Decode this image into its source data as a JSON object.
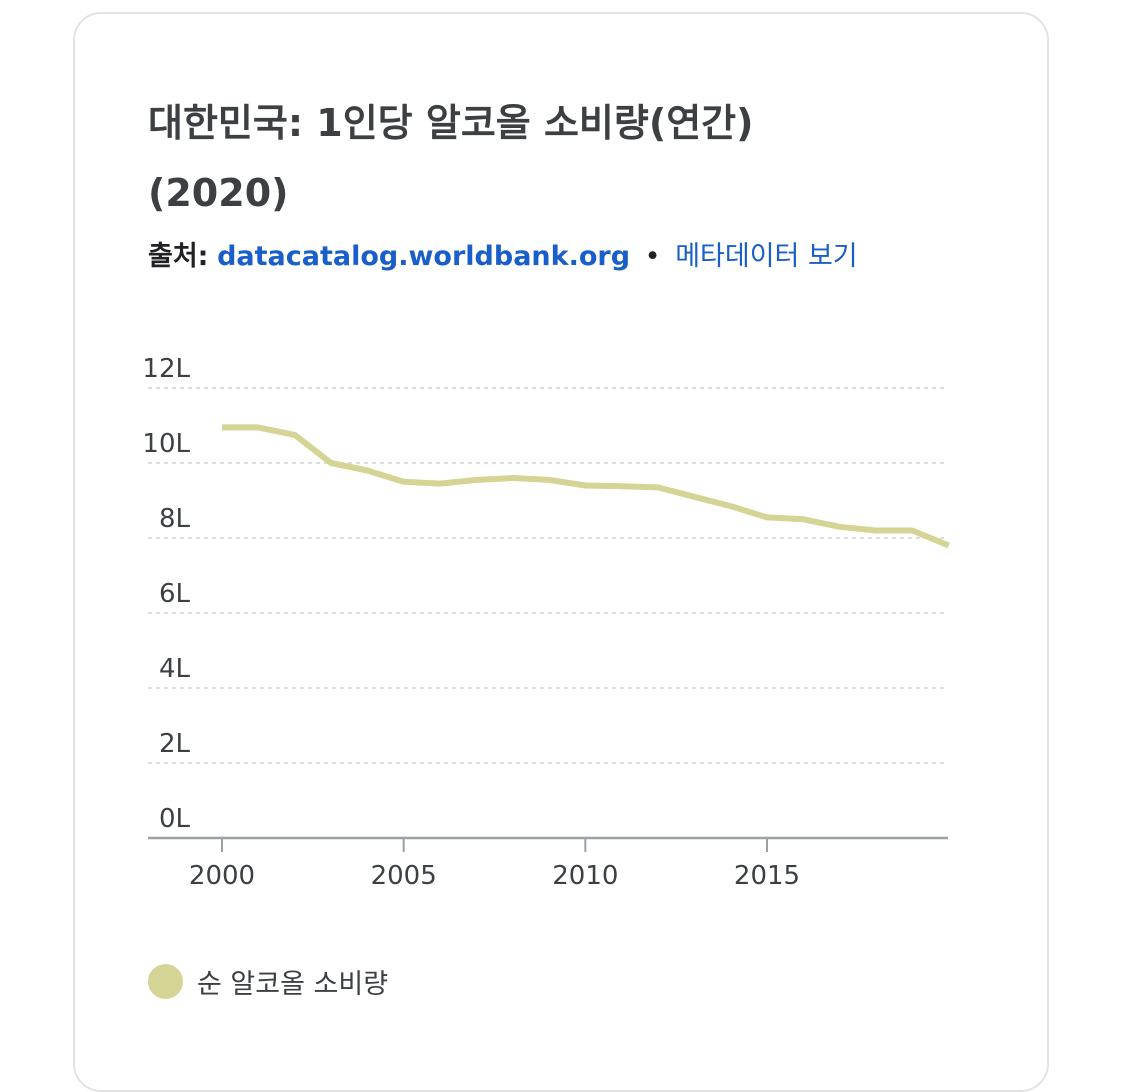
{
  "card": {
    "title": "대한민국: 1인당 알코올 소비량(연간) (2020)",
    "source_label": "출처:",
    "source_link": "datacatalog.worldbank.org",
    "separator": "•",
    "metadata_link": "메타데이터 보기"
  },
  "chart_data": {
    "type": "line",
    "title": "대한민국: 1인당 알코올 소비량(연간) (2020)",
    "xlabel": "",
    "ylabel": "",
    "x_ticks": [
      "2000",
      "2005",
      "2010",
      "2015"
    ],
    "y_ticks": [
      "0L",
      "2L",
      "4L",
      "6L",
      "8L",
      "10L",
      "12L"
    ],
    "ylim": [
      0,
      12
    ],
    "xlim": [
      1998,
      2020
    ],
    "grid": true,
    "legend_position": "bottom-left",
    "series": [
      {
        "name": "순 알코올 소비량",
        "color": "#d4d494",
        "x": [
          2000,
          2001,
          2002,
          2003,
          2004,
          2005,
          2006,
          2007,
          2008,
          2009,
          2010,
          2011,
          2012,
          2013,
          2014,
          2015,
          2016,
          2017,
          2018,
          2019,
          2020
        ],
        "y": [
          10.95,
          10.95,
          10.75,
          10.0,
          9.8,
          9.5,
          9.45,
          9.55,
          9.6,
          9.55,
          9.4,
          9.38,
          9.35,
          9.1,
          8.85,
          8.55,
          8.5,
          8.3,
          8.2,
          8.2,
          7.8
        ]
      }
    ]
  }
}
